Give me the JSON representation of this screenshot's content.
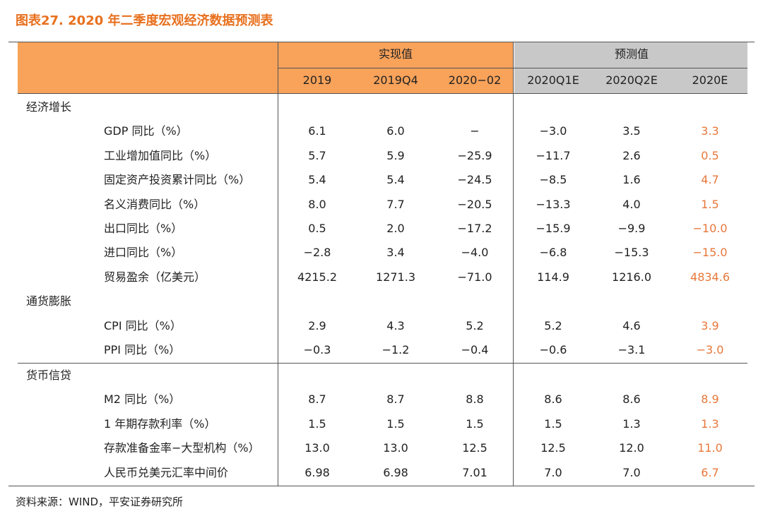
{
  "header": {
    "title": "图表27.  2020 年二季度宏观经济数据预测表"
  },
  "table": {
    "group_headers": [
      "实现值",
      "预测值"
    ],
    "columns": [
      "2019",
      "2019Q4",
      "2020−02",
      "2020Q1E",
      "2020Q2E",
      "2020E"
    ],
    "sections": [
      {
        "name": "经济增长",
        "rows": [
          {
            "label": "GDP 同比（%）",
            "values": [
              "6.1",
              "6.0",
              "−",
              "−3.0",
              "3.5",
              "3.3"
            ]
          },
          {
            "label": "工业增加值同比（%）",
            "values": [
              "5.7",
              "5.9",
              "−25.9",
              "−11.7",
              "2.6",
              "0.5"
            ]
          },
          {
            "label": "固定资产投资累计同比（%）",
            "values": [
              "5.4",
              "5.4",
              "−24.5",
              "−8.5",
              "1.6",
              "4.7"
            ]
          },
          {
            "label": "名义消费同比（%）",
            "values": [
              "8.0",
              "7.7",
              "−20.5",
              "−13.3",
              "4.0",
              "1.5"
            ]
          },
          {
            "label": "出口同比（%）",
            "values": [
              "0.5",
              "2.0",
              "−17.2",
              "−15.9",
              "−9.9",
              "−10.0"
            ]
          },
          {
            "label": "进口同比（%）",
            "values": [
              "−2.8",
              "3.4",
              "−4.0",
              "−6.8",
              "−15.3",
              "−15.0"
            ]
          },
          {
            "label": "贸易盈余（亿美元）",
            "values": [
              "4215.2",
              "1271.3",
              "−71.0",
              "114.9",
              "1216.0",
              "4834.6"
            ]
          }
        ]
      },
      {
        "name": "通货膨胀",
        "rows": [
          {
            "label": "CPI 同比（%）",
            "values": [
              "2.9",
              "4.3",
              "5.2",
              "5.2",
              "4.6",
              "3.9"
            ]
          },
          {
            "label": "PPI 同比（%）",
            "values": [
              "−0.3",
              "−1.2",
              "−0.4",
              "−0.6",
              "−3.1",
              "−3.0"
            ]
          }
        ]
      },
      {
        "name": "货币信贷",
        "rows": [
          {
            "label": "M2 同比（%）",
            "values": [
              "8.7",
              "8.7",
              "8.8",
              "8.6",
              "8.6",
              "8.9"
            ]
          },
          {
            "label": "1 年期存款利率（%）",
            "values": [
              "1.5",
              "1.5",
              "1.5",
              "1.5",
              "1.3",
              "1.3"
            ]
          },
          {
            "label": "存款准备金率−大型机构（%）",
            "values": [
              "13.0",
              "13.0",
              "12.5",
              "12.5",
              "12.0",
              "11.0"
            ]
          },
          {
            "label": "人民币兑美元汇率中间价",
            "values": [
              "6.98",
              "6.98",
              "7.01",
              "7.0",
              "7.0",
              "6.7"
            ]
          }
        ]
      }
    ]
  },
  "footnote": "资料来源：WIND，平安证券研究所"
}
